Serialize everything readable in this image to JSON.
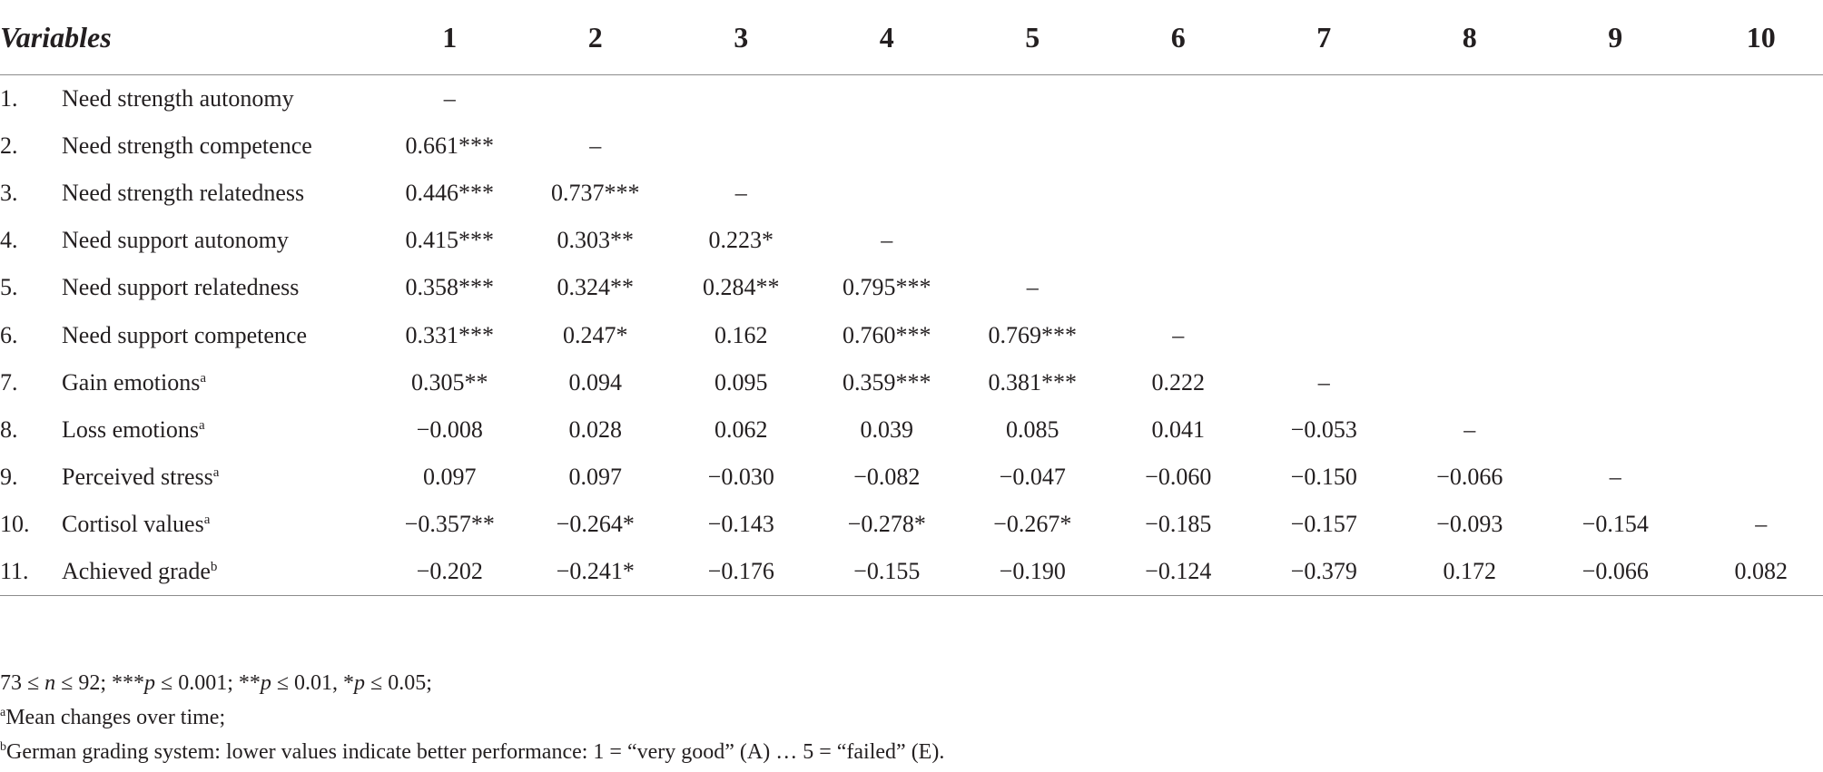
{
  "table": {
    "header": {
      "variables_label": "Variables",
      "columns": [
        "1",
        "2",
        "3",
        "4",
        "5",
        "6",
        "7",
        "8",
        "9",
        "10"
      ]
    },
    "rows": [
      {
        "num": "1.",
        "label": "Need strength autonomy",
        "sup": "",
        "values": [
          "–",
          "",
          "",
          "",
          "",
          "",
          "",
          "",
          "",
          ""
        ]
      },
      {
        "num": "2.",
        "label": "Need strength competence",
        "sup": "",
        "values": [
          "0.661***",
          "–",
          "",
          "",
          "",
          "",
          "",
          "",
          "",
          ""
        ]
      },
      {
        "num": "3.",
        "label": "Need strength relatedness",
        "sup": "",
        "values": [
          "0.446***",
          "0.737***",
          "–",
          "",
          "",
          "",
          "",
          "",
          "",
          ""
        ]
      },
      {
        "num": "4.",
        "label": "Need support autonomy",
        "sup": "",
        "values": [
          "0.415***",
          "0.303**",
          "0.223*",
          "–",
          "",
          "",
          "",
          "",
          "",
          ""
        ]
      },
      {
        "num": "5.",
        "label": "Need support relatedness",
        "sup": "",
        "values": [
          "0.358***",
          "0.324**",
          "0.284**",
          "0.795***",
          "–",
          "",
          "",
          "",
          "",
          ""
        ]
      },
      {
        "num": "6.",
        "label": "Need support competence",
        "sup": "",
        "values": [
          "0.331***",
          "0.247*",
          "0.162",
          "0.760***",
          "0.769***",
          "–",
          "",
          "",
          "",
          ""
        ]
      },
      {
        "num": "7.",
        "label": "Gain emotions",
        "sup": "a",
        "values": [
          "0.305**",
          "0.094",
          "0.095",
          "0.359***",
          "0.381***",
          "0.222",
          "–",
          "",
          "",
          ""
        ]
      },
      {
        "num": "8.",
        "label": "Loss emotions",
        "sup": "a",
        "values": [
          "−0.008",
          "0.028",
          "0.062",
          "0.039",
          "0.085",
          "0.041",
          "−0.053",
          "–",
          "",
          ""
        ]
      },
      {
        "num": "9.",
        "label": "Perceived stress",
        "sup": "a",
        "values": [
          "0.097",
          "0.097",
          "−0.030",
          "−0.082",
          "−0.047",
          "−0.060",
          "−0.150",
          "−0.066",
          "–",
          ""
        ]
      },
      {
        "num": "10.",
        "label": "Cortisol values",
        "sup": "a",
        "values": [
          "−0.357**",
          "−0.264*",
          "−0.143",
          "−0.278*",
          "−0.267*",
          "−0.185",
          "−0.157",
          "−0.093",
          "−0.154",
          "–"
        ]
      },
      {
        "num": "11.",
        "label": "Achieved grade",
        "sup": "b",
        "values": [
          "−0.202",
          "−0.241*",
          "−0.176",
          "−0.155",
          "−0.190",
          "−0.124",
          "−0.379",
          "0.172",
          "−0.066",
          "0.082"
        ]
      }
    ]
  },
  "notes": {
    "line1": {
      "n_lower": "73 ≤ ",
      "n_var": "n",
      "n_upper": " ≤ 92; ***",
      "p1_var": "p",
      "p1_text": " ≤ 0.001; **",
      "p2_var": "p",
      "p2_text": " ≤ 0.01, *",
      "p3_var": "p",
      "p3_text": " ≤ 0.05;"
    },
    "line2": {
      "sup": "a",
      "text": "Mean changes over time;"
    },
    "line3": {
      "sup": "b",
      "text": "German grading system: lower values indicate better performance: 1 = “very good” (A) … 5 = “failed” (E)."
    }
  }
}
